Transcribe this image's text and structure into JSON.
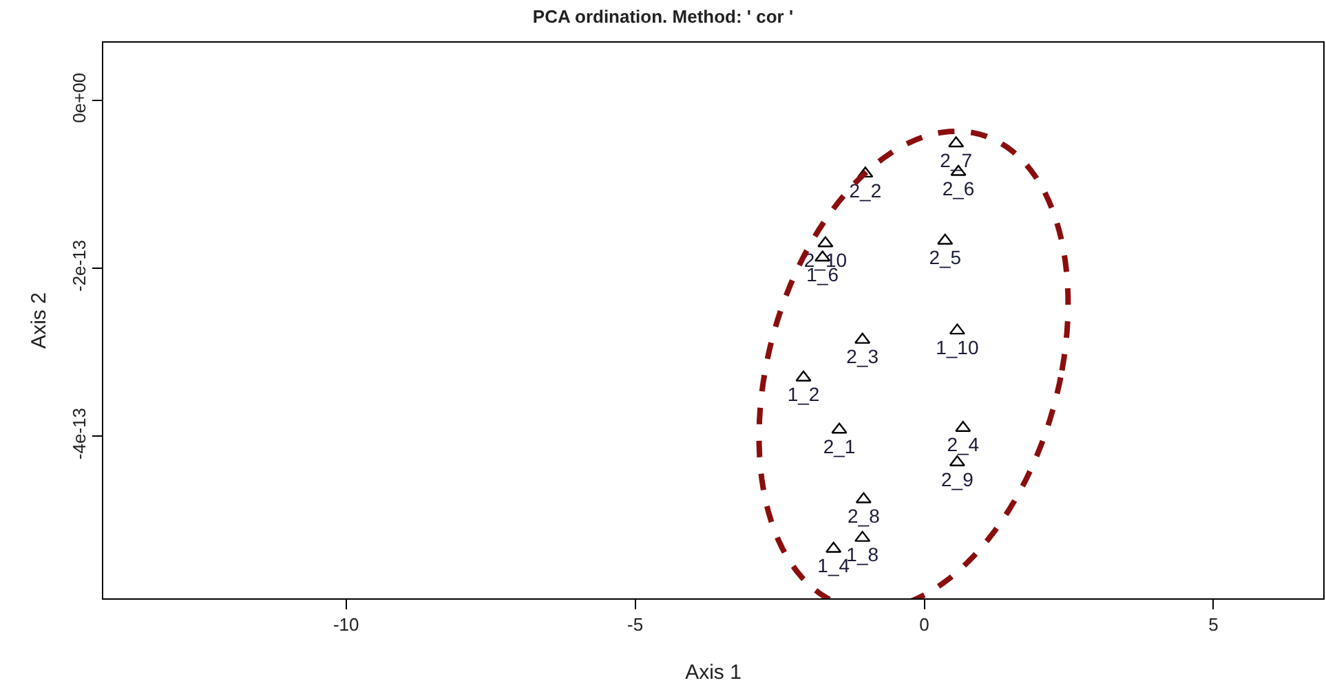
{
  "chart_data": {
    "type": "scatter",
    "title": "PCA ordination. Method: ' cor '",
    "xlabel": "Axis 1",
    "ylabel": "Axis 2",
    "x": [
      0.55,
      0.59,
      -1.02,
      -1.71,
      -1.76,
      0.36,
      0.57,
      -1.07,
      -2.09,
      -1.47,
      0.67,
      0.57,
      -1.05,
      -1.07,
      -1.57
    ],
    "series": [
      {
        "color": "#000000",
        "values": [
          -5.1e-14,
          -8.5e-14,
          -8.7e-14,
          -1.7e-13,
          -1.87e-13,
          -1.67e-13,
          -2.74e-13,
          -2.85e-13,
          -3.3e-13,
          -3.92e-13,
          -3.9e-13,
          -4.31e-13,
          -4.75e-13,
          -5.21e-13,
          -5.34e-13
        ],
        "value_labels": [
          "2_7",
          "2_6",
          "2_2",
          "2_10",
          "1_6",
          "2_5",
          "1_10",
          "2_3",
          "1_2",
          "2_1",
          "2_4",
          "2_9",
          "2_8",
          "1_8",
          "1_4"
        ]
      }
    ],
    "marker": "triangle",
    "xlim": [
      -14.2,
      6.9
    ],
    "ylim": [
      -5.93e-13,
      6.9e-14
    ],
    "xticks": [
      -10,
      -5,
      0,
      5
    ],
    "yticks": [
      {
        "value": 0,
        "label": "0e+00"
      },
      {
        "value": -2e-13,
        "label": "-2e-13"
      },
      {
        "value": -4e-13,
        "label": "-4e-13"
      }
    ]
  }
}
